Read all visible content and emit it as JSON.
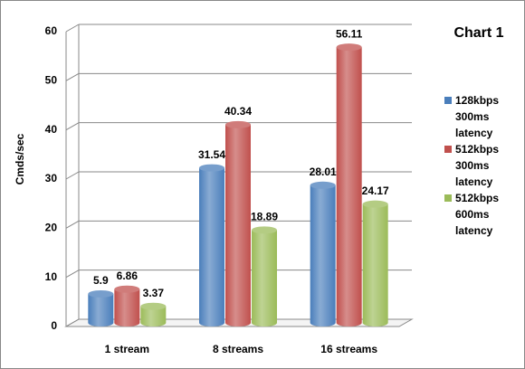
{
  "chart_data": {
    "type": "bar",
    "title": "Chart 1",
    "y_label": "Cmds/sec",
    "categories": [
      "1 stream",
      "8 streams",
      "16 streams"
    ],
    "series": [
      {
        "name": "128kbps 300ms latency",
        "color": "#4a7ebb",
        "values": [
          5.9,
          31.54,
          28.01
        ]
      },
      {
        "name": "512kbps 300ms latency",
        "color": "#c0504d",
        "values": [
          6.86,
          40.34,
          56.11
        ]
      },
      {
        "name": "512kbps 600ms latency",
        "color": "#9bbb59",
        "values": [
          3.37,
          18.89,
          24.17
        ]
      }
    ],
    "ylim": [
      0,
      60
    ],
    "yticks": [
      0,
      10,
      20,
      30,
      40,
      50,
      60
    ],
    "grid": true
  }
}
